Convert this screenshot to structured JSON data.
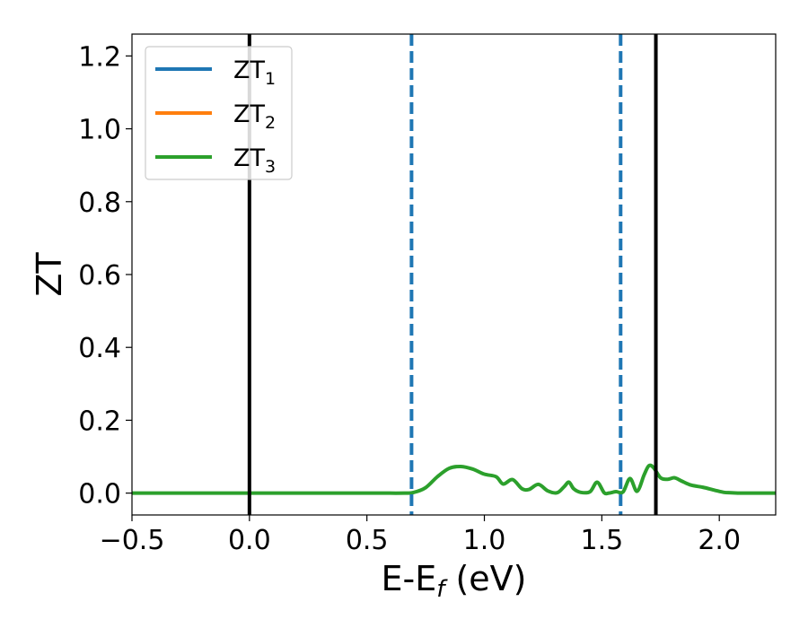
{
  "chart_data": {
    "type": "line",
    "title": "",
    "xlabel": {
      "base": "E-E",
      "sub": "f",
      "unit": " (eV)"
    },
    "ylabel": "ZT",
    "xlim": [
      -0.5,
      2.24
    ],
    "ylim": [
      -0.06,
      1.26
    ],
    "xticks": [
      -0.5,
      0.0,
      0.5,
      1.0,
      1.5,
      2.0
    ],
    "xtick_labels": [
      "−0.5",
      "0.0",
      "0.5",
      "1.0",
      "1.5",
      "2.0"
    ],
    "yticks": [
      0.0,
      0.2,
      0.4,
      0.6,
      0.8,
      1.0,
      1.2
    ],
    "ytick_labels": [
      "0.0",
      "0.2",
      "0.4",
      "0.6",
      "0.8",
      "1.0",
      "1.2"
    ],
    "grid": false,
    "legend_position": "top-left",
    "series": [
      {
        "name": "ZT",
        "sub": "1",
        "color": "#1f77b4"
      },
      {
        "name": "ZT",
        "sub": "2",
        "color": "#ff7f0e"
      },
      {
        "name": "ZT",
        "sub": "3",
        "color": "#2ca02c",
        "x": [
          -0.5,
          0.0,
          0.5,
          0.66,
          0.7,
          0.75,
          0.8,
          0.85,
          0.9,
          0.95,
          1.0,
          1.05,
          1.08,
          1.12,
          1.16,
          1.19,
          1.23,
          1.27,
          1.31,
          1.34,
          1.36,
          1.38,
          1.41,
          1.45,
          1.48,
          1.51,
          1.53,
          1.56,
          1.59,
          1.62,
          1.65,
          1.68,
          1.7,
          1.72,
          1.75,
          1.78,
          1.81,
          1.84,
          1.88,
          1.93,
          1.98,
          2.02,
          2.05,
          2.1,
          2.24
        ],
        "y": [
          0.0,
          0.0,
          0.0,
          0.0,
          0.002,
          0.015,
          0.045,
          0.068,
          0.073,
          0.066,
          0.052,
          0.045,
          0.025,
          0.037,
          0.012,
          0.01,
          0.024,
          0.006,
          0.001,
          0.018,
          0.03,
          0.012,
          0.002,
          0.004,
          0.03,
          0.001,
          0.0,
          0.004,
          0.003,
          0.04,
          0.005,
          0.05,
          0.075,
          0.07,
          0.042,
          0.038,
          0.042,
          0.033,
          0.022,
          0.016,
          0.008,
          0.002,
          0.001,
          0.0,
          0.0
        ]
      }
    ],
    "vlines": [
      {
        "x": 0.0,
        "color": "#000000",
        "style": "solid"
      },
      {
        "x": 0.69,
        "color": "#1f77b4",
        "style": "dashed"
      },
      {
        "x": 1.58,
        "color": "#1f77b4",
        "style": "dashed"
      },
      {
        "x": 1.73,
        "color": "#000000",
        "style": "solid"
      }
    ]
  }
}
